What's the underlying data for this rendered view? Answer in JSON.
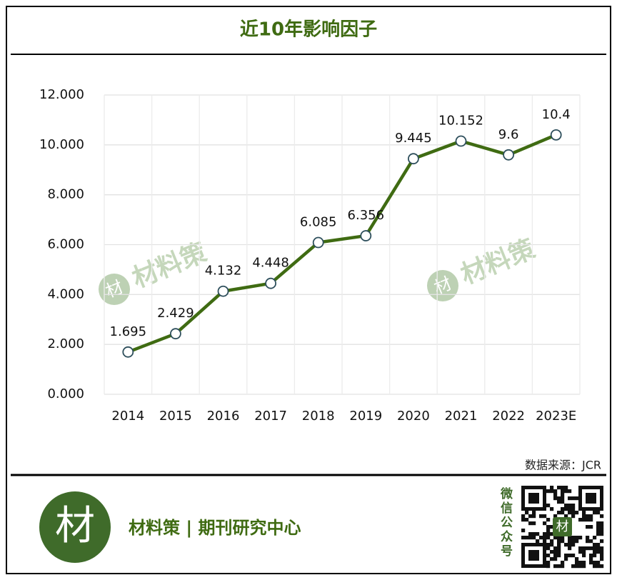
{
  "chart_data": {
    "type": "line",
    "title": "近10年影响因子",
    "categories": [
      "2014",
      "2015",
      "2016",
      "2017",
      "2018",
      "2019",
      "2020",
      "2021",
      "2022",
      "2023E"
    ],
    "values": [
      1.695,
      2.429,
      4.132,
      4.448,
      6.085,
      6.356,
      9.445,
      10.152,
      9.6,
      10.4
    ],
    "color": "#3f6b12",
    "ylim": [
      0,
      12
    ],
    "yticks": [
      {
        "value": 0,
        "label": "0.000"
      },
      {
        "value": 2,
        "label": "2.000"
      },
      {
        "value": 4,
        "label": "4.000"
      },
      {
        "value": 6,
        "label": "6.000"
      },
      {
        "value": 8,
        "label": "8.000"
      },
      {
        "value": 10,
        "label": "10.000"
      },
      {
        "value": 12,
        "label": "12.000"
      }
    ],
    "grid": true
  },
  "source": "数据来源：JCR",
  "watermark": "材料策",
  "logo": "材",
  "footer": "材料策 | 期刊研究中心",
  "qr_caption": "微信公众号"
}
